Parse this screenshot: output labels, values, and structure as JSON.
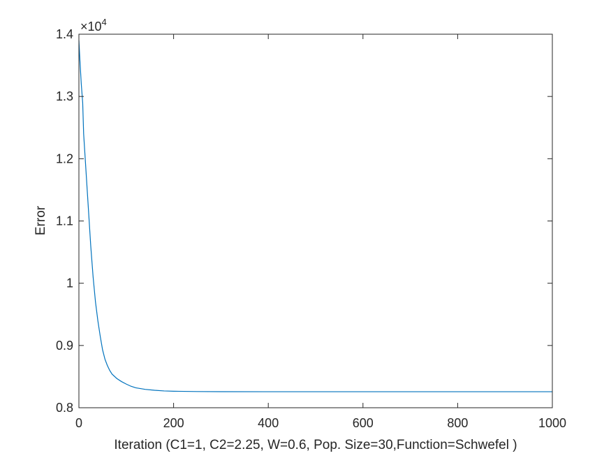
{
  "chart_data": {
    "type": "line",
    "title": "",
    "xlabel": "Iteration  (C1=1, C2=2.25, W=0.6, Pop. Size=30,Function=Schwefel )",
    "ylabel": "Error",
    "xlim": [
      0,
      1000
    ],
    "ylim": [
      8000,
      14000
    ],
    "xticks": [
      0,
      200,
      400,
      600,
      800,
      1000
    ],
    "xtick_labels": [
      "0",
      "200",
      "400",
      "600",
      "800",
      "1000"
    ],
    "yticks": [
      8000,
      9000,
      10000,
      11000,
      12000,
      13000,
      14000
    ],
    "ytick_labels": [
      "0.8",
      "0.9",
      "1",
      "1.1",
      "1.2",
      "1.3",
      "1.4"
    ],
    "y_exponent_base": "×10",
    "y_exponent_power": "4",
    "grid": false,
    "series": [
      {
        "name": "Error",
        "color": "#0072BD",
        "x": [
          0,
          2,
          5,
          8,
          10,
          15,
          20,
          25,
          30,
          35,
          40,
          45,
          50,
          55,
          60,
          65,
          70,
          80,
          90,
          100,
          110,
          120,
          140,
          160,
          180,
          200,
          250,
          300,
          400,
          500,
          600,
          700,
          800,
          900,
          1000
        ],
        "y": [
          13900,
          13600,
          13200,
          12900,
          12400,
          11800,
          11200,
          10600,
          10100,
          9700,
          9400,
          9150,
          8930,
          8780,
          8680,
          8600,
          8540,
          8470,
          8420,
          8380,
          8345,
          8320,
          8295,
          8280,
          8270,
          8265,
          8260,
          8258,
          8257,
          8257,
          8257,
          8257,
          8257,
          8257,
          8257
        ]
      }
    ]
  }
}
